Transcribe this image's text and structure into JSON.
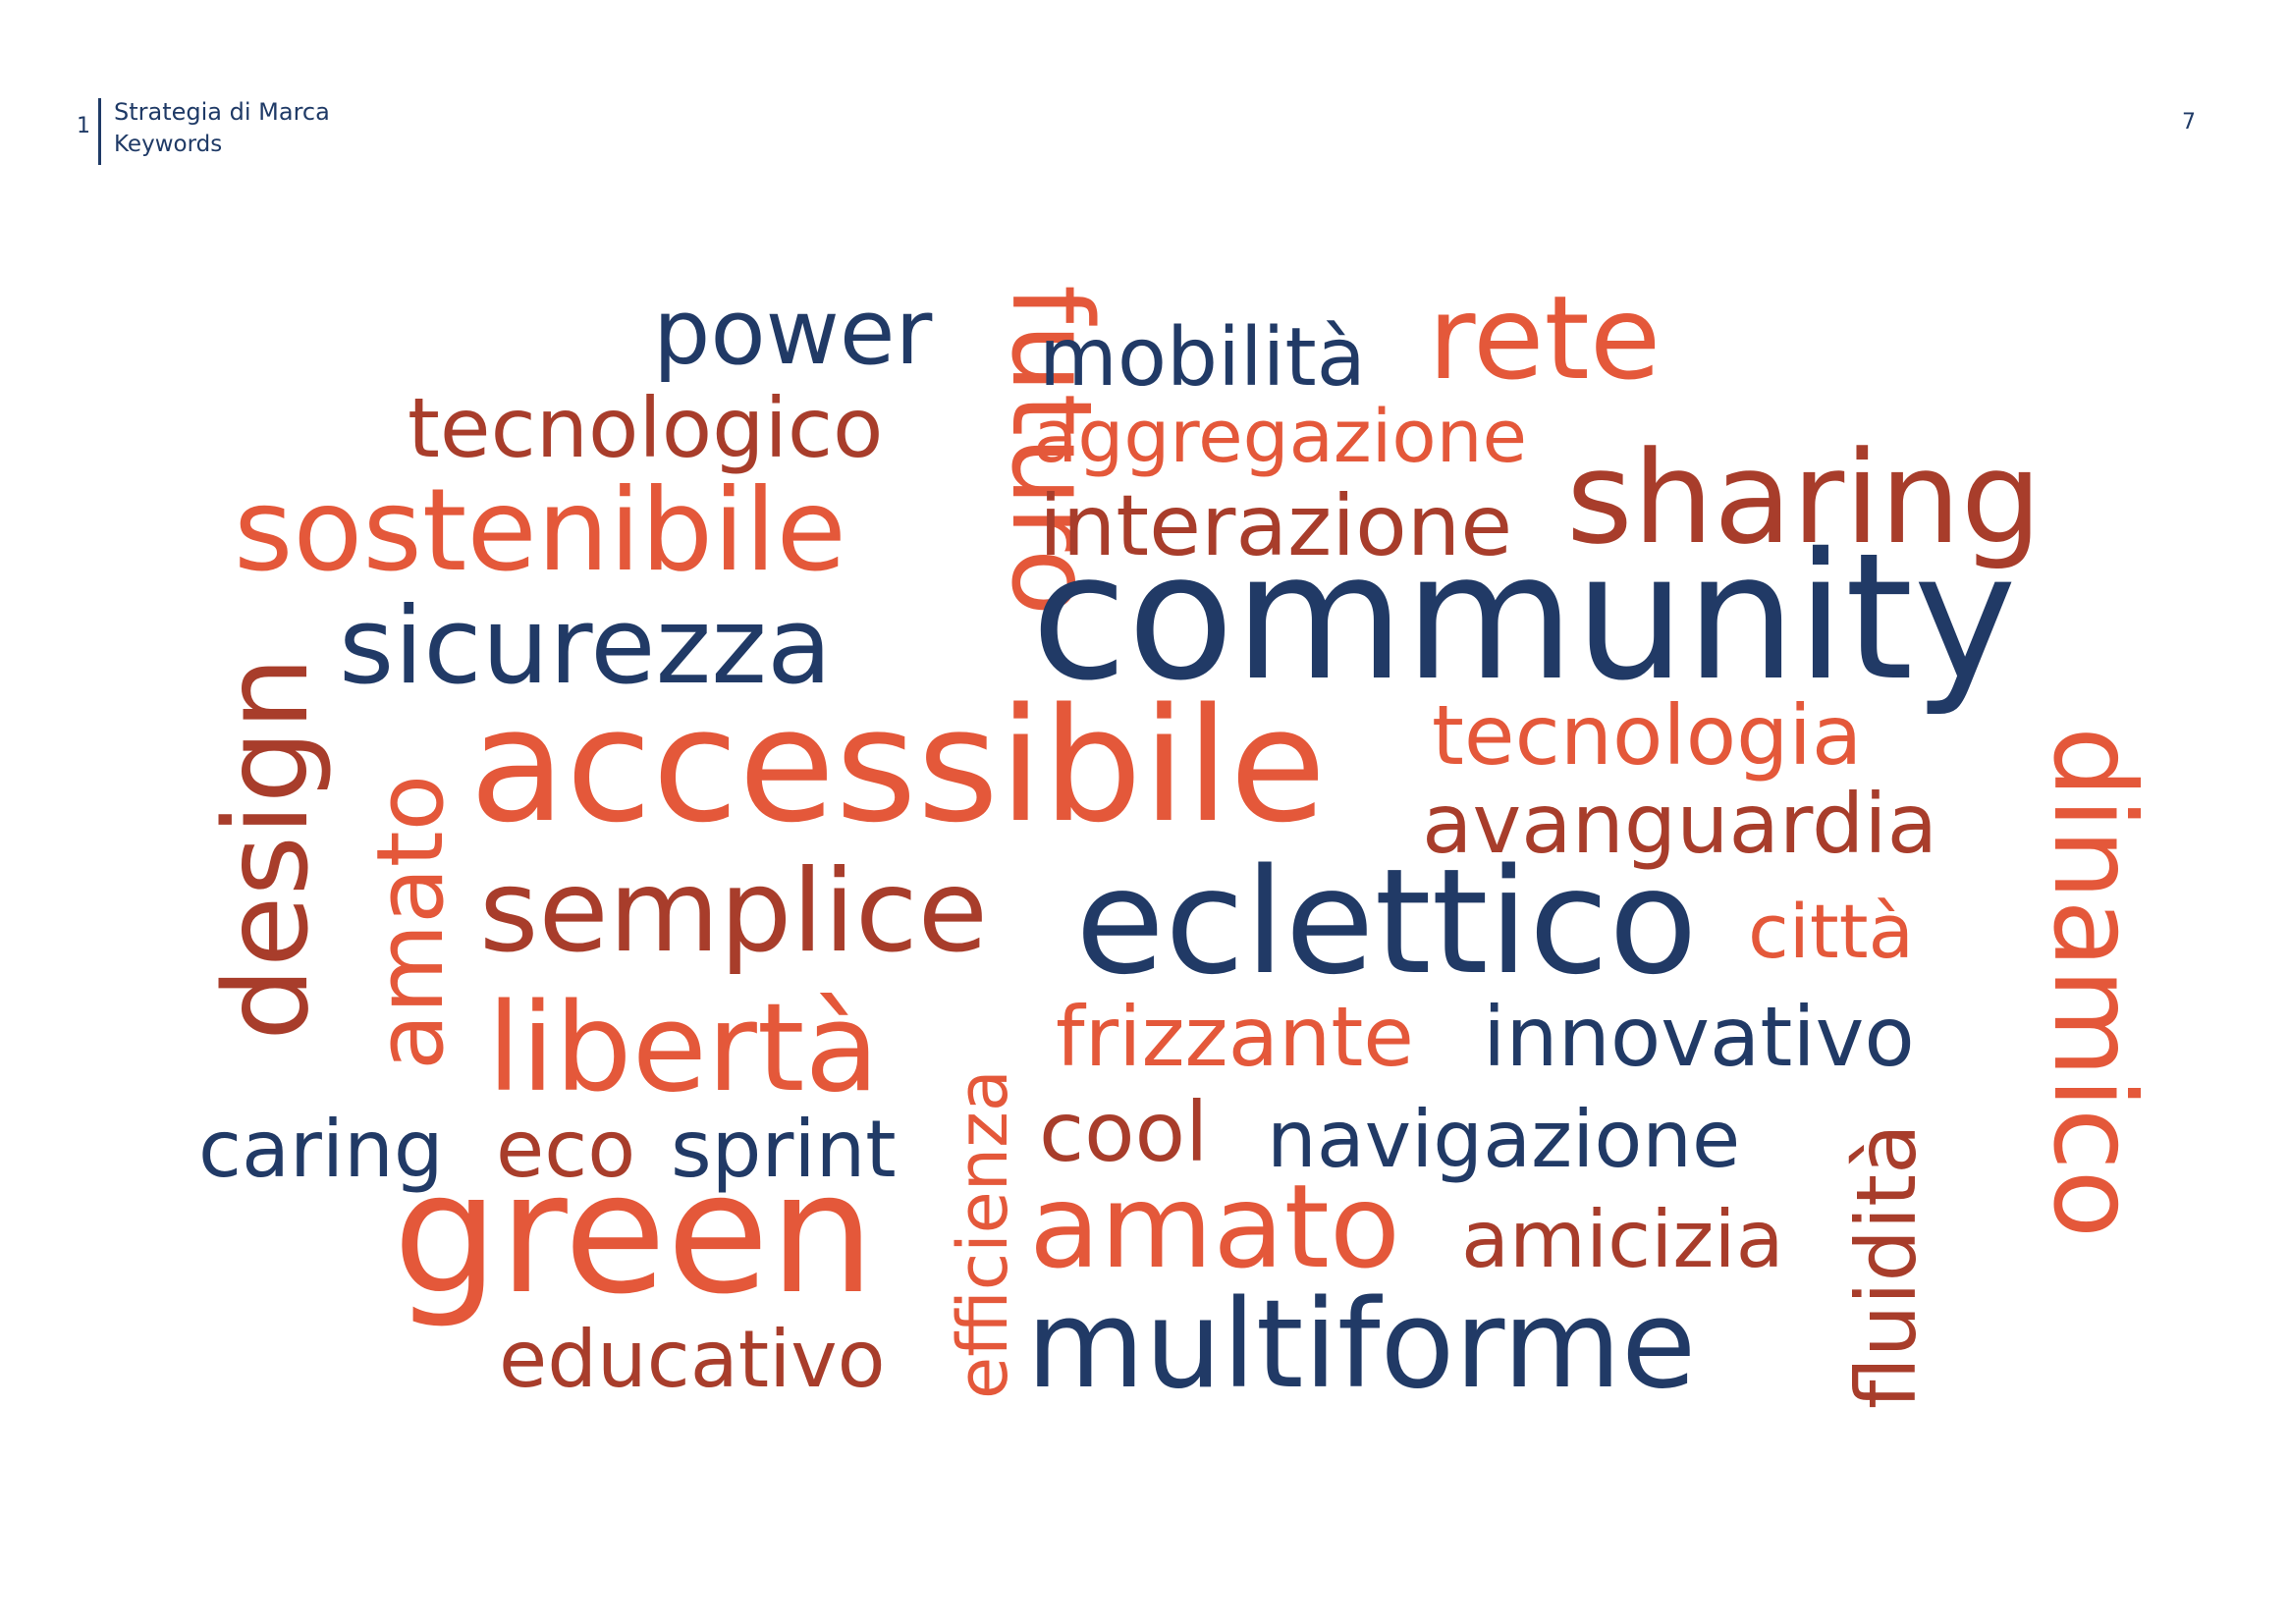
{
  "header": {
    "section_number": "1",
    "title": "Strategia di Marca",
    "subtitle": "Keywords"
  },
  "page_number": "7",
  "colors": {
    "navy": "#213a66",
    "orange": "#e4583a",
    "rust": "#a83d2b",
    "coral": "#ea6a44"
  },
  "word_cloud": {
    "words": [
      {
        "text": "power",
        "color": "#213a66"
      },
      {
        "text": "futuro",
        "color": "#e4583a"
      },
      {
        "text": "mobilità",
        "color": "#213a66"
      },
      {
        "text": "rete",
        "color": "#e4583a"
      },
      {
        "text": "tecnologico",
        "color": "#a83d2b"
      },
      {
        "text": "aggregazione",
        "color": "#e4583a"
      },
      {
        "text": "sostenibile",
        "color": "#e4583a"
      },
      {
        "text": "interazione",
        "color": "#a83d2b"
      },
      {
        "text": "sharing",
        "color": "#a83d2b"
      },
      {
        "text": "design",
        "color": "#a83d2b"
      },
      {
        "text": "sicurezza",
        "color": "#213a66"
      },
      {
        "text": "community",
        "color": "#213a66"
      },
      {
        "text": "amato",
        "color": "#e4583a"
      },
      {
        "text": "accessibile",
        "color": "#e4583a"
      },
      {
        "text": "tecnologia",
        "color": "#e4583a"
      },
      {
        "text": "avanguardia",
        "color": "#a83d2b"
      },
      {
        "text": "dinamico",
        "color": "#e4583a"
      },
      {
        "text": "semplice",
        "color": "#a83d2b"
      },
      {
        "text": "eclettico",
        "color": "#213a66"
      },
      {
        "text": "città",
        "color": "#e4583a"
      },
      {
        "text": "libertà",
        "color": "#e4583a"
      },
      {
        "text": "efficienza",
        "color": "#e4583a"
      },
      {
        "text": "frizzante",
        "color": "#e4583a"
      },
      {
        "text": "innovativo",
        "color": "#213a66"
      },
      {
        "text": "caring",
        "color": "#213a66"
      },
      {
        "text": "eco",
        "color": "#a83d2b"
      },
      {
        "text": "sprint",
        "color": "#213a66"
      },
      {
        "text": "cool",
        "color": "#a83d2b"
      },
      {
        "text": "navigazione",
        "color": "#213a66"
      },
      {
        "text": "fluidità",
        "color": "#a83d2b"
      },
      {
        "text": "green",
        "color": "#e4583a"
      },
      {
        "text": "amato",
        "color": "#e4583a"
      },
      {
        "text": "amicizia",
        "color": "#a83d2b"
      },
      {
        "text": "educativo",
        "color": "#a83d2b"
      },
      {
        "text": "multiforme",
        "color": "#213a66"
      }
    ]
  }
}
